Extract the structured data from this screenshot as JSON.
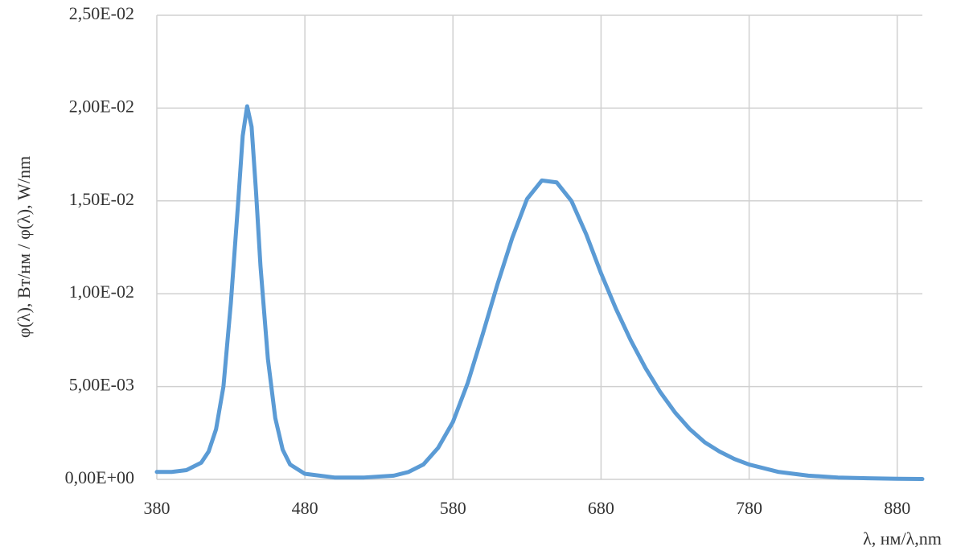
{
  "chart_data": {
    "type": "line",
    "x_label": "λ, нм/λ,nm",
    "y_label": "φ(λ), Вт/нм / φ(λ), W/nm",
    "x": [
      380,
      390,
      400,
      410,
      415,
      420,
      425,
      430,
      435,
      438,
      441,
      444,
      447,
      450,
      455,
      460,
      465,
      470,
      480,
      500,
      520,
      540,
      550,
      560,
      570,
      580,
      590,
      600,
      610,
      620,
      630,
      640,
      650,
      660,
      670,
      680,
      690,
      700,
      710,
      720,
      730,
      740,
      750,
      760,
      770,
      780,
      800,
      820,
      840,
      860,
      880,
      897
    ],
    "series": [
      {
        "name": "φ(λ)",
        "color": "#5b9bd5",
        "values": [
          0.0004,
          0.0004,
          0.0005,
          0.0009,
          0.0015,
          0.0027,
          0.005,
          0.0095,
          0.015,
          0.0185,
          0.0201,
          0.019,
          0.0155,
          0.0115,
          0.0065,
          0.0033,
          0.0016,
          0.0008,
          0.0003,
          0.0001,
          0.0001,
          0.0002,
          0.0004,
          0.0008,
          0.0017,
          0.0031,
          0.0052,
          0.0078,
          0.0105,
          0.013,
          0.0151,
          0.0161,
          0.016,
          0.015,
          0.0132,
          0.0111,
          0.0092,
          0.0075,
          0.006,
          0.0047,
          0.0036,
          0.0027,
          0.002,
          0.0015,
          0.0011,
          0.0008,
          0.0004,
          0.0002,
          0.0001,
          6e-05,
          3e-05,
          2e-05
        ]
      }
    ],
    "xlim": [
      380,
      897
    ],
    "xticks": [
      380,
      480,
      580,
      680,
      780,
      880
    ],
    "ylim": [
      0,
      0.025
    ],
    "yticks": [
      {
        "value": 0,
        "label": "0,00E+00"
      },
      {
        "value": 0.005,
        "label": "5,00E-03"
      },
      {
        "value": 0.01,
        "label": "1,00E-02"
      },
      {
        "value": 0.015,
        "label": "1,50E-02"
      },
      {
        "value": 0.02,
        "label": "2,00E-02"
      },
      {
        "value": 0.025,
        "label": "2,50E-02"
      }
    ],
    "grid": true
  }
}
